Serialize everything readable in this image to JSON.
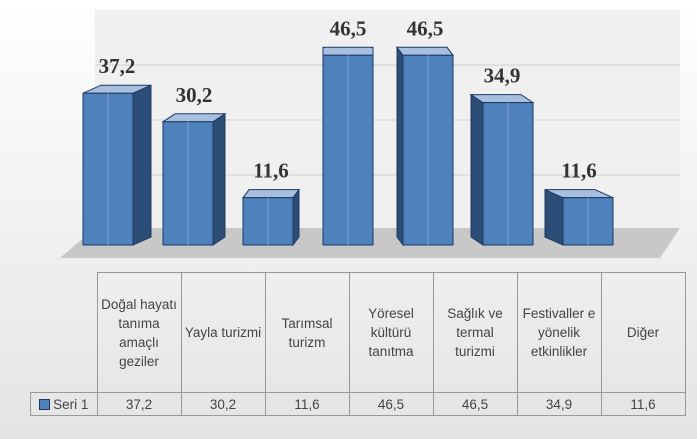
{
  "chart_data": {
    "type": "bar",
    "categories": [
      "Doğal hayatı tanıma amaçlı geziler",
      "Yayla turizmi",
      "Tarımsal turizm",
      "Yöresel kültürü tanıtma",
      "Sağlık ve termal turizmi",
      "Festivaller e yönelik etkinlikler",
      "Diğer"
    ],
    "series": [
      {
        "name": "Seri 1",
        "color": "#4f81bd",
        "values": [
          37.2,
          30.2,
          11.6,
          46.5,
          46.5,
          34.9,
          11.6
        ],
        "value_labels": [
          "37,2",
          "30,2",
          "11,6",
          "46,5",
          "46,5",
          "34,9",
          "11,6"
        ]
      }
    ],
    "ylim": [
      0,
      50
    ],
    "grid": true
  }
}
